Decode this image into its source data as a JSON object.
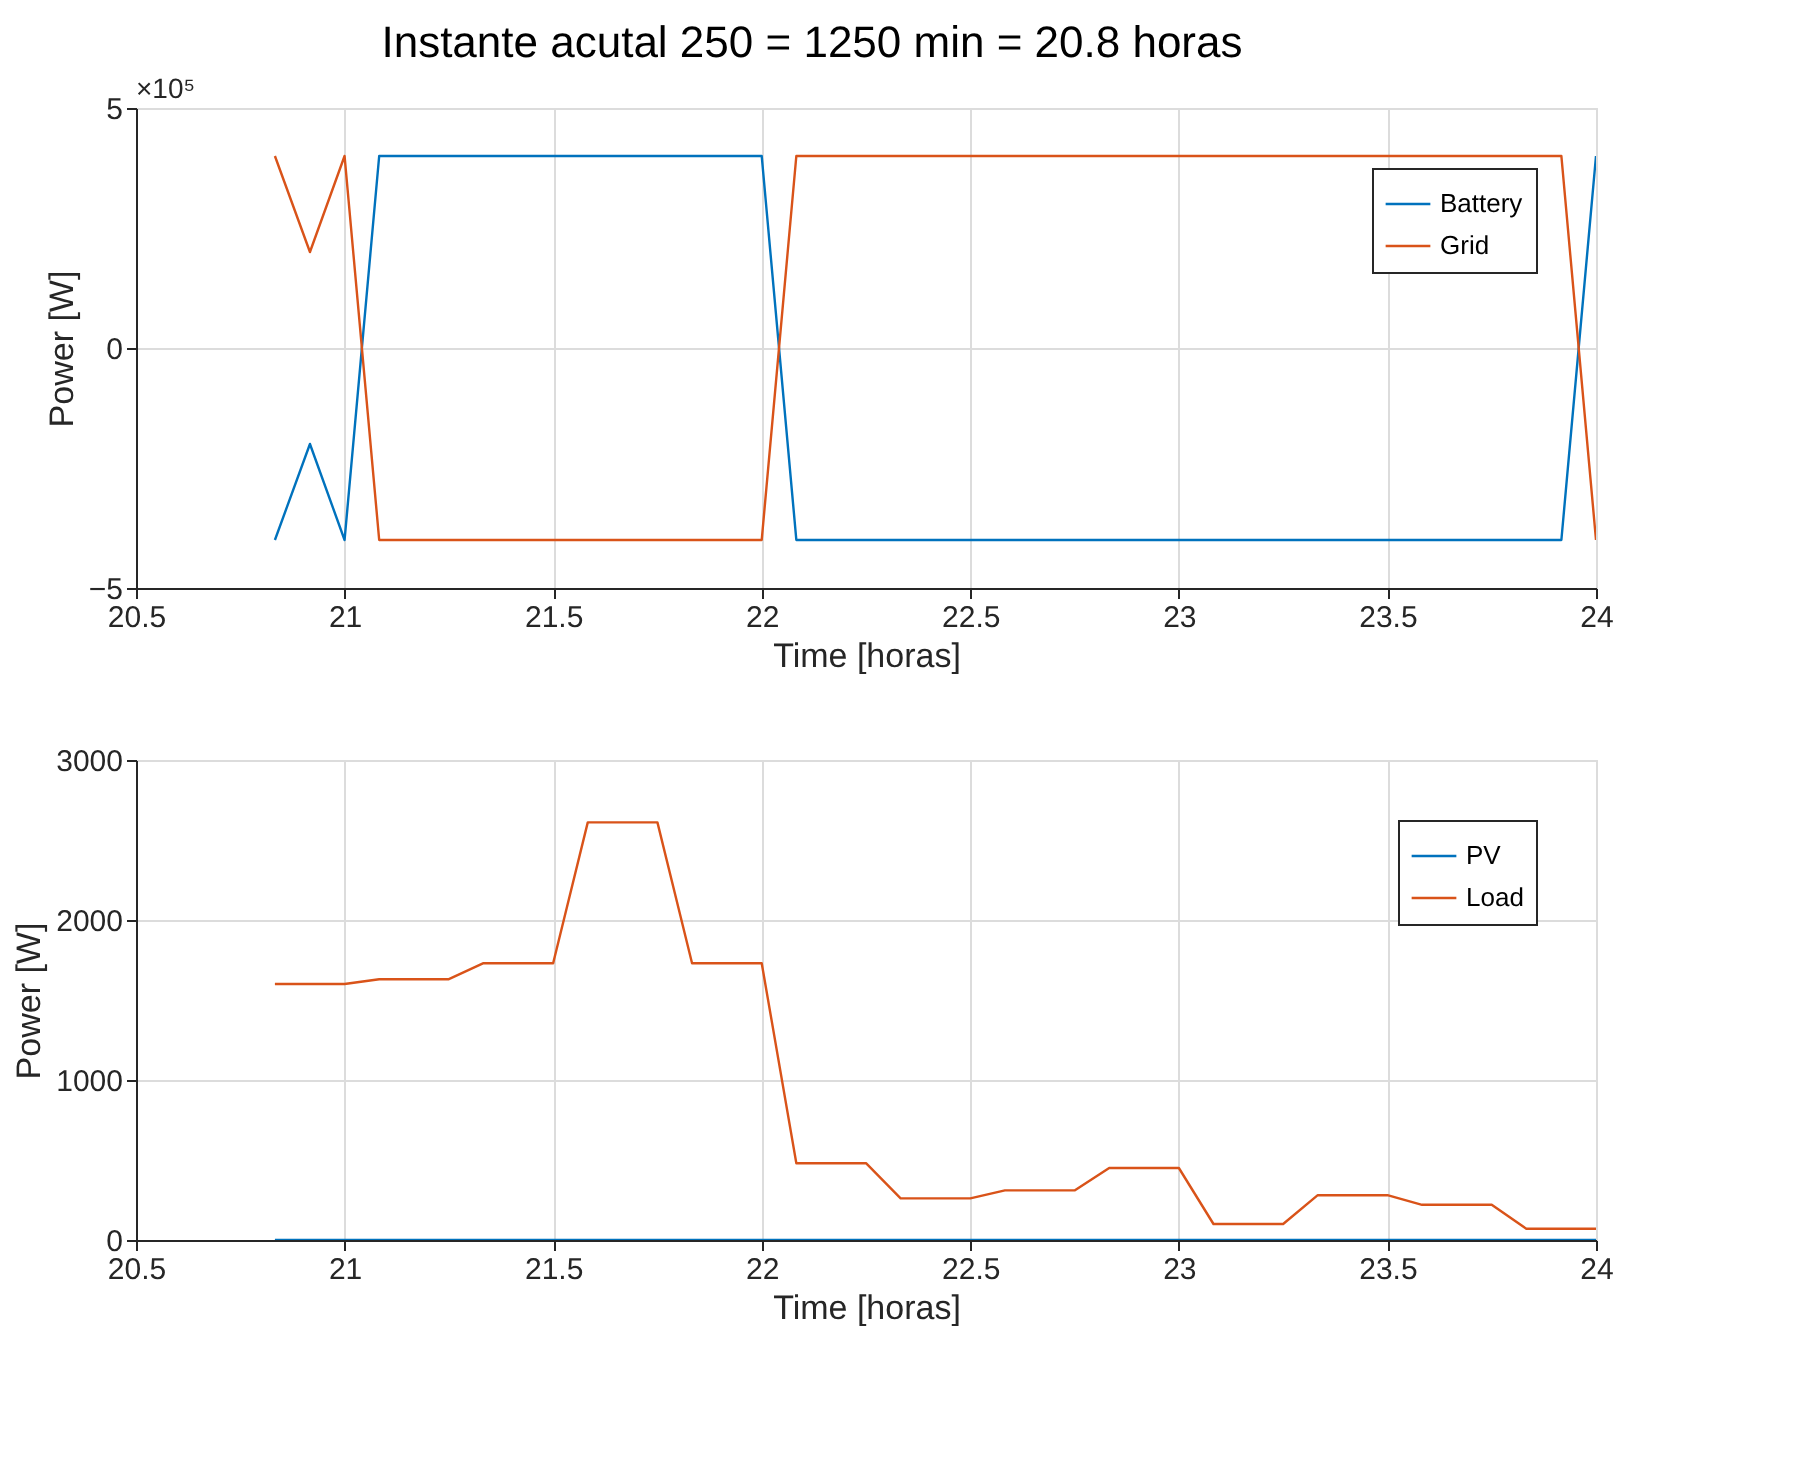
{
  "chart_data": [
    {
      "type": "line",
      "title": "Instante acutal 250 = 1250 min = 20.8 horas",
      "xlabel": "Time [horas]",
      "ylabel": "Power [W]",
      "annotations": [
        "×10⁵"
      ],
      "xlim": [
        20.5,
        24
      ],
      "xticks": [
        20.5,
        21,
        21.5,
        22,
        22.5,
        23,
        23.5,
        24
      ],
      "ylim": [
        -5,
        5
      ],
      "yticks": [
        -5,
        0,
        5
      ],
      "grid": true,
      "legend": "top right",
      "line_style": "solid",
      "marker": "none",
      "series": [
        {
          "name": "Battery",
          "color": "#0072bd",
          "x": [
            20.833,
            20.917,
            21.0,
            21.083,
            22.0,
            22.083,
            23.917,
            24.0
          ],
          "values": [
            -4,
            -2,
            -4,
            4,
            4,
            -4,
            -4,
            4
          ]
        },
        {
          "name": "Grid",
          "color": "#d95319",
          "x": [
            20.833,
            20.917,
            21.0,
            21.083,
            22.0,
            22.083,
            23.917,
            24.0
          ],
          "values": [
            4,
            2,
            4,
            -4,
            -4,
            4,
            4,
            -4
          ]
        }
      ]
    },
    {
      "type": "line",
      "xlabel": "Time [horas]",
      "ylabel": "Power [W]",
      "xlim": [
        20.5,
        24
      ],
      "xticks": [
        20.5,
        21,
        21.5,
        22,
        22.5,
        23,
        23.5,
        24
      ],
      "ylim": [
        0,
        3000
      ],
      "yticks": [
        0,
        1000,
        2000,
        3000
      ],
      "grid": true,
      "legend": "top right",
      "line_style": "solid",
      "marker": "none",
      "series": [
        {
          "name": "PV",
          "color": "#0072bd",
          "x": [
            20.833,
            24.0
          ],
          "values": [
            0,
            0
          ]
        },
        {
          "name": "Load",
          "color": "#d95319",
          "x": [
            20.833,
            21.0,
            21.083,
            21.25,
            21.333,
            21.5,
            21.583,
            21.75,
            21.833,
            22.0,
            22.083,
            22.25,
            22.333,
            22.5,
            22.583,
            22.75,
            22.833,
            23.0,
            23.083,
            23.25,
            23.333,
            23.5,
            23.583,
            23.75,
            23.833,
            24.0
          ],
          "values": [
            1600,
            1600,
            1630,
            1630,
            1730,
            1730,
            2610,
            2610,
            1730,
            1730,
            480,
            480,
            260,
            260,
            310,
            310,
            450,
            450,
            100,
            100,
            280,
            280,
            220,
            220,
            70,
            70
          ]
        }
      ]
    }
  ]
}
